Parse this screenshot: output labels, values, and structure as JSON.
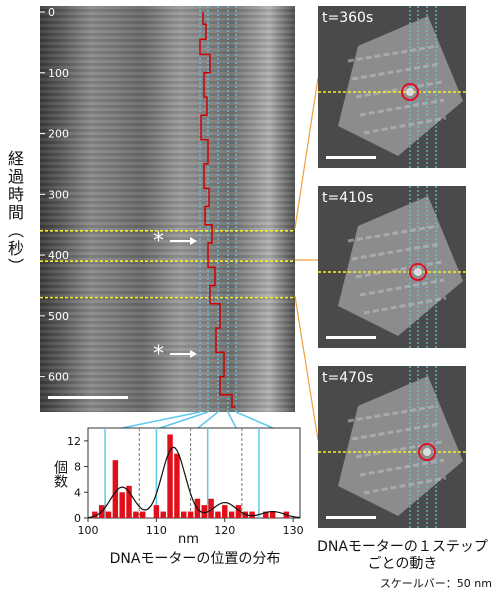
{
  "kymograph": {
    "y_axis_label": "経過時間（秒）",
    "tick_labels": [
      "0",
      "100",
      "200",
      "300",
      "400",
      "500",
      "600"
    ],
    "star_marker": "*",
    "highlight_times_s": [
      360,
      410,
      470
    ]
  },
  "histogram": {
    "ylabel": "個数",
    "xlabel": "nm",
    "caption": "DNAモーターの位置の分布",
    "x_ticks": [
      "100",
      "110",
      "120",
      "130"
    ],
    "y_ticks": [
      "0",
      "4",
      "8",
      "12"
    ]
  },
  "snapshots": {
    "caption_line1": "DNAモーターの１ステップ",
    "caption_line2": "ごとの動き",
    "items": [
      {
        "label": "t=360s"
      },
      {
        "label": "t=410s"
      },
      {
        "label": "t=470s"
      }
    ]
  },
  "scale_bar_note": "スケールバー：50 nm",
  "chart_data": {
    "type": "bar",
    "xlabel": "nm",
    "ylabel": "個数",
    "xlim": [
      100,
      131
    ],
    "ylim": [
      0,
      14
    ],
    "categories": [
      101,
      102,
      103,
      104,
      105,
      106,
      107,
      108,
      109,
      110,
      111,
      112,
      113,
      114,
      115,
      116,
      117,
      118,
      119,
      120,
      121,
      122,
      123,
      124,
      125,
      126,
      127,
      128,
      129
    ],
    "values": [
      1,
      2,
      1,
      9,
      4,
      5,
      1,
      1,
      0,
      2,
      1,
      13,
      10,
      1,
      1,
      3,
      2,
      3,
      1,
      2,
      1,
      2,
      1,
      1,
      0,
      1,
      1,
      0,
      1
    ],
    "fit_peaks": [
      {
        "center": 105,
        "height": 4.8
      },
      {
        "center": 112.5,
        "height": 11
      },
      {
        "center": 120,
        "height": 2.4
      },
      {
        "center": 127,
        "height": 1
      }
    ],
    "dashed_lines_x": [
      107.5,
      115,
      122.5
    ],
    "cyan_lines_x": [
      102.5,
      110,
      117.5,
      125
    ]
  }
}
